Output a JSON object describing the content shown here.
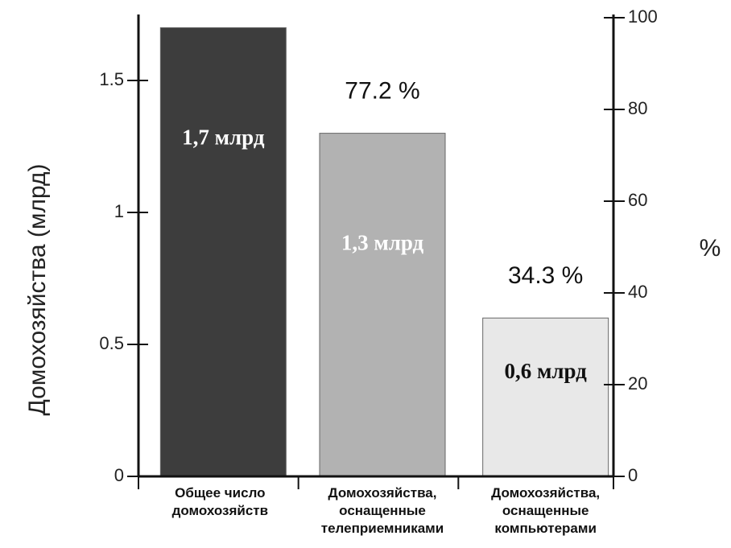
{
  "chart_data": {
    "type": "bar",
    "categories": [
      [
        "Общее число",
        "домохозяйств"
      ],
      [
        "Домохозяйства,",
        "оснащенные",
        "телеприемниками"
      ],
      [
        "Домохозяйства,",
        "оснащенные",
        "компьютерами"
      ]
    ],
    "values": [
      1.7,
      1.3,
      0.6
    ],
    "value_labels": [
      "1,7 млрд",
      "1,3 млрд",
      "0,6 млрд"
    ],
    "percent_labels": [
      "",
      "77.2 %",
      "34.3 %"
    ],
    "bar_colors": [
      "#3d3d3d",
      "#b2b2b2",
      "#e8e8e8"
    ],
    "value_label_colors": [
      "#ffffff",
      "#ffffff",
      "#111111"
    ],
    "ylabel": "Домохозяйства (млрд)",
    "ylabel_right": "%",
    "ylim": [
      0,
      1.75
    ],
    "yticks": [
      0,
      0.5,
      1,
      1.5
    ],
    "ytick_labels": [
      "0",
      "0.5",
      "1",
      "1.5"
    ],
    "ylim_right": [
      0,
      100
    ],
    "yticks_right": [
      0,
      20,
      40,
      60,
      80,
      100
    ],
    "grid": false
  }
}
